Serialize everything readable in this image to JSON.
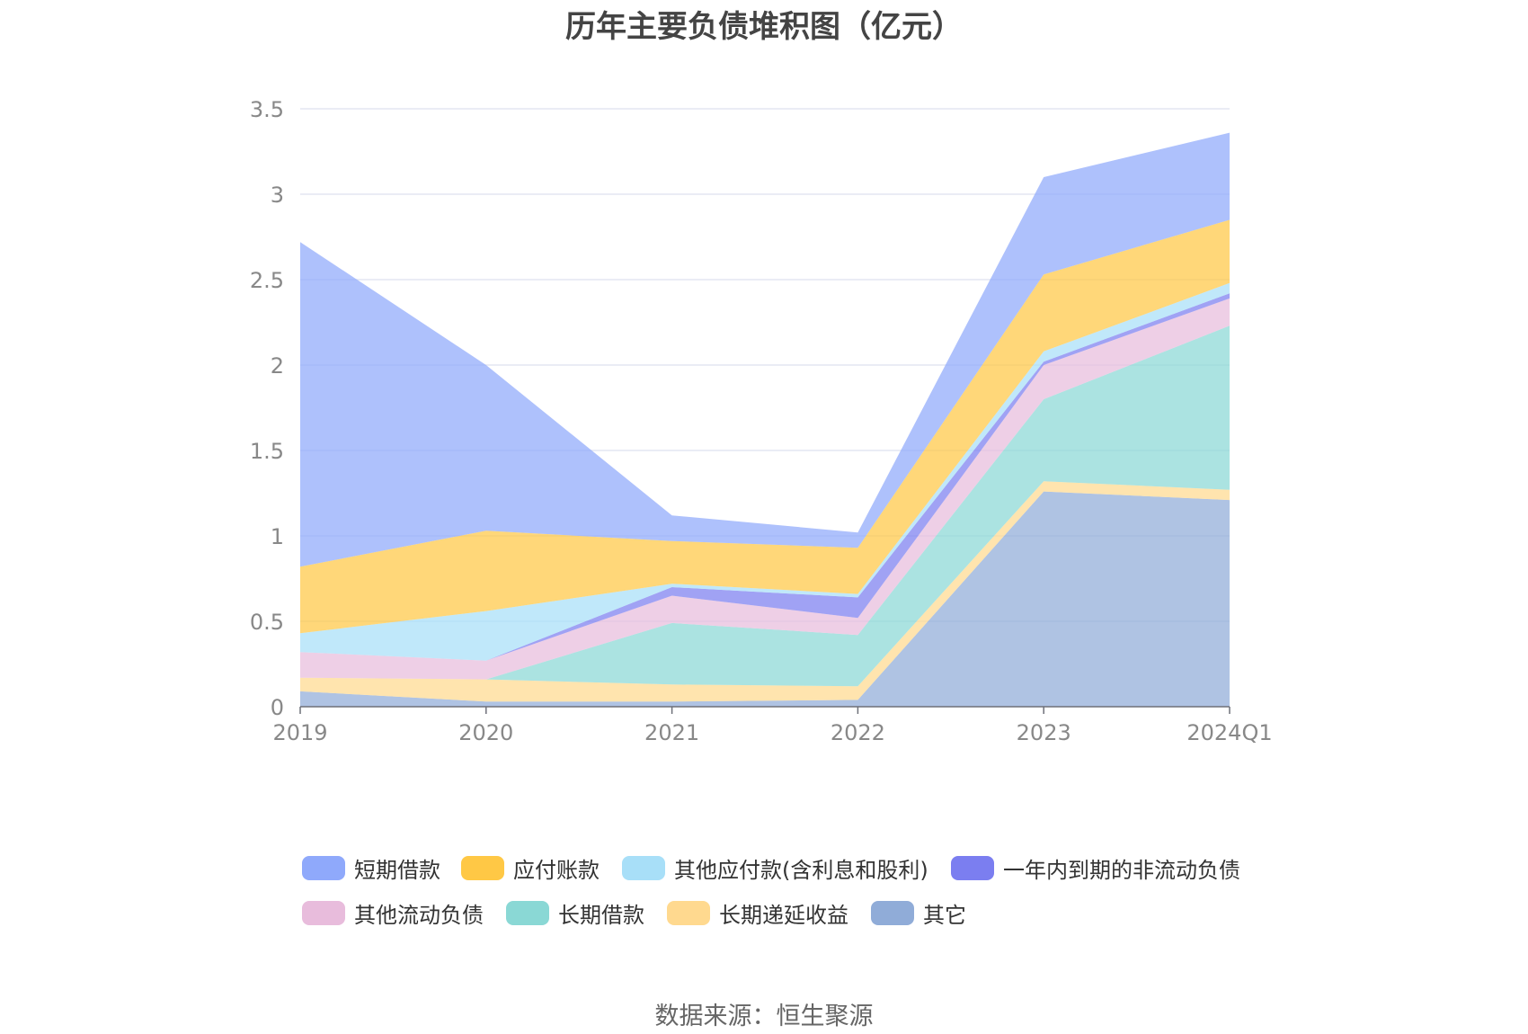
{
  "chart_data": {
    "type": "area",
    "title": "历年主要负债堆积图（亿元）",
    "categories": [
      "2019",
      "2020",
      "2021",
      "2022",
      "2023",
      "2024Q1"
    ],
    "ylim": [
      0,
      3.5
    ],
    "yticks": [
      "0",
      "0.5",
      "1",
      "1.5",
      "2",
      "2.5",
      "3",
      "3.5"
    ],
    "grid": true,
    "legend_position": "bottom",
    "stacked": true,
    "series": [
      {
        "name": "其它",
        "color": "#90acd8",
        "values": [
          0.09,
          0.03,
          0.03,
          0.04,
          1.26,
          1.21
        ]
      },
      {
        "name": "长期递延收益",
        "color": "#ffd98f",
        "values": [
          0.08,
          0.13,
          0.1,
          0.08,
          0.06,
          0.06
        ]
      },
      {
        "name": "长期借款",
        "color": "#8ad8d5",
        "values": [
          0.0,
          0.0,
          0.36,
          0.3,
          0.48,
          0.96
        ]
      },
      {
        "name": "其他流动负债",
        "color": "#e8bcdc",
        "values": [
          0.15,
          0.11,
          0.16,
          0.1,
          0.2,
          0.16
        ]
      },
      {
        "name": "一年内到期的非流动负债",
        "color": "#7b7ef0",
        "values": [
          0.0,
          0.0,
          0.05,
          0.12,
          0.02,
          0.03
        ]
      },
      {
        "name": "其他应付款(含利息和股利)",
        "color": "#a8dff8",
        "values": [
          0.11,
          0.29,
          0.02,
          0.02,
          0.06,
          0.06
        ]
      },
      {
        "name": "应付账款",
        "color": "#ffc845",
        "values": [
          0.39,
          0.47,
          0.25,
          0.27,
          0.45,
          0.37
        ]
      },
      {
        "name": "短期借款",
        "color": "#8fa9fb",
        "values": [
          1.9,
          0.97,
          0.15,
          0.09,
          0.57,
          0.51
        ]
      }
    ]
  },
  "legend": {
    "items": [
      {
        "label": "短期借款",
        "color": "#8fa9fb"
      },
      {
        "label": "应付账款",
        "color": "#ffc845"
      },
      {
        "label": "其他应付款(含利息和股利)",
        "color": "#a8dff8"
      },
      {
        "label": "一年内到期的非流动负债",
        "color": "#7b7ef0"
      },
      {
        "label": "其他流动负债",
        "color": "#e8bcdc"
      },
      {
        "label": "长期借款",
        "color": "#8ad8d5"
      },
      {
        "label": "长期递延收益",
        "color": "#ffd98f"
      },
      {
        "label": "其它",
        "color": "#90acd8"
      }
    ]
  },
  "source": "数据来源：恒生聚源"
}
